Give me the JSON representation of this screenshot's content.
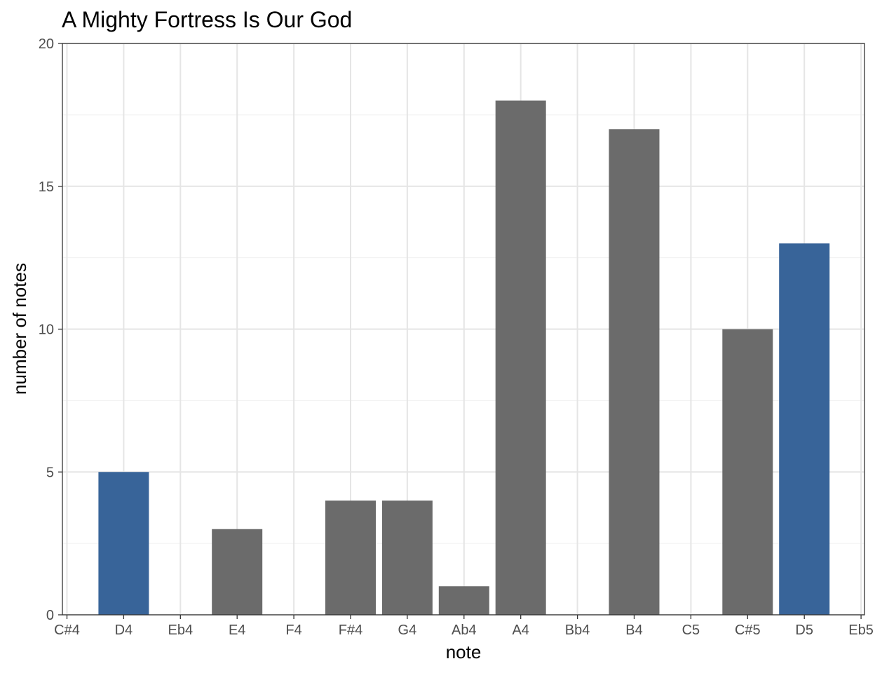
{
  "chart_data": {
    "type": "bar",
    "title": "A Mighty Fortress Is Our God",
    "xlabel": "note",
    "ylabel": "number of notes",
    "categories": [
      "C#4",
      "D4",
      "Eb4",
      "E4",
      "F4",
      "F#4",
      "G4",
      "Ab4",
      "A4",
      "Bb4",
      "B4",
      "C5",
      "C#5",
      "D5",
      "Eb5"
    ],
    "values": [
      0,
      5,
      0,
      3,
      0,
      4,
      4,
      1,
      18,
      0,
      17,
      0,
      10,
      13,
      0
    ],
    "highlighted": [
      "D4",
      "D5"
    ],
    "ylim": [
      0,
      20
    ],
    "yticks": [
      0,
      5,
      10,
      15,
      20
    ],
    "grid": true,
    "colors": {
      "default": "#6b6b6b",
      "highlight": "#386499",
      "grid_major": "#e5e5e5",
      "grid_minor": "#f0f0f0",
      "panel_border": "#333333"
    }
  }
}
